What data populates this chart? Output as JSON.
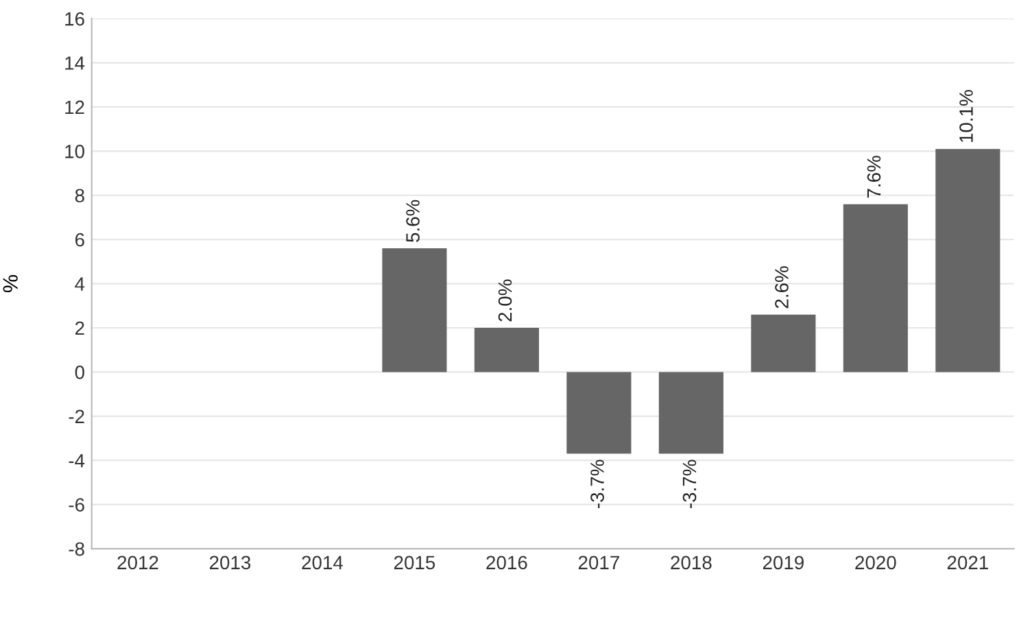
{
  "chart_data": {
    "type": "bar",
    "ylabel": "%",
    "categories": [
      "2012",
      "2013",
      "2014",
      "2015",
      "2016",
      "2017",
      "2018",
      "2019",
      "2020",
      "2021"
    ],
    "series": [
      {
        "color": "#666666",
        "values": [
          null,
          null,
          null,
          5.6,
          2.0,
          -3.7,
          -3.7,
          2.6,
          7.6,
          10.1
        ],
        "value_labels": [
          null,
          null,
          null,
          "5.6%",
          "2.0%",
          "-3.7%",
          "-3.7%",
          "2.6%",
          "7.6%",
          "10.1%"
        ]
      }
    ],
    "ylim": [
      -8,
      16
    ],
    "yticks": [
      -8,
      -6,
      -4,
      -2,
      0,
      2,
      4,
      6,
      8,
      10,
      12,
      14,
      16
    ],
    "grid": "y"
  }
}
